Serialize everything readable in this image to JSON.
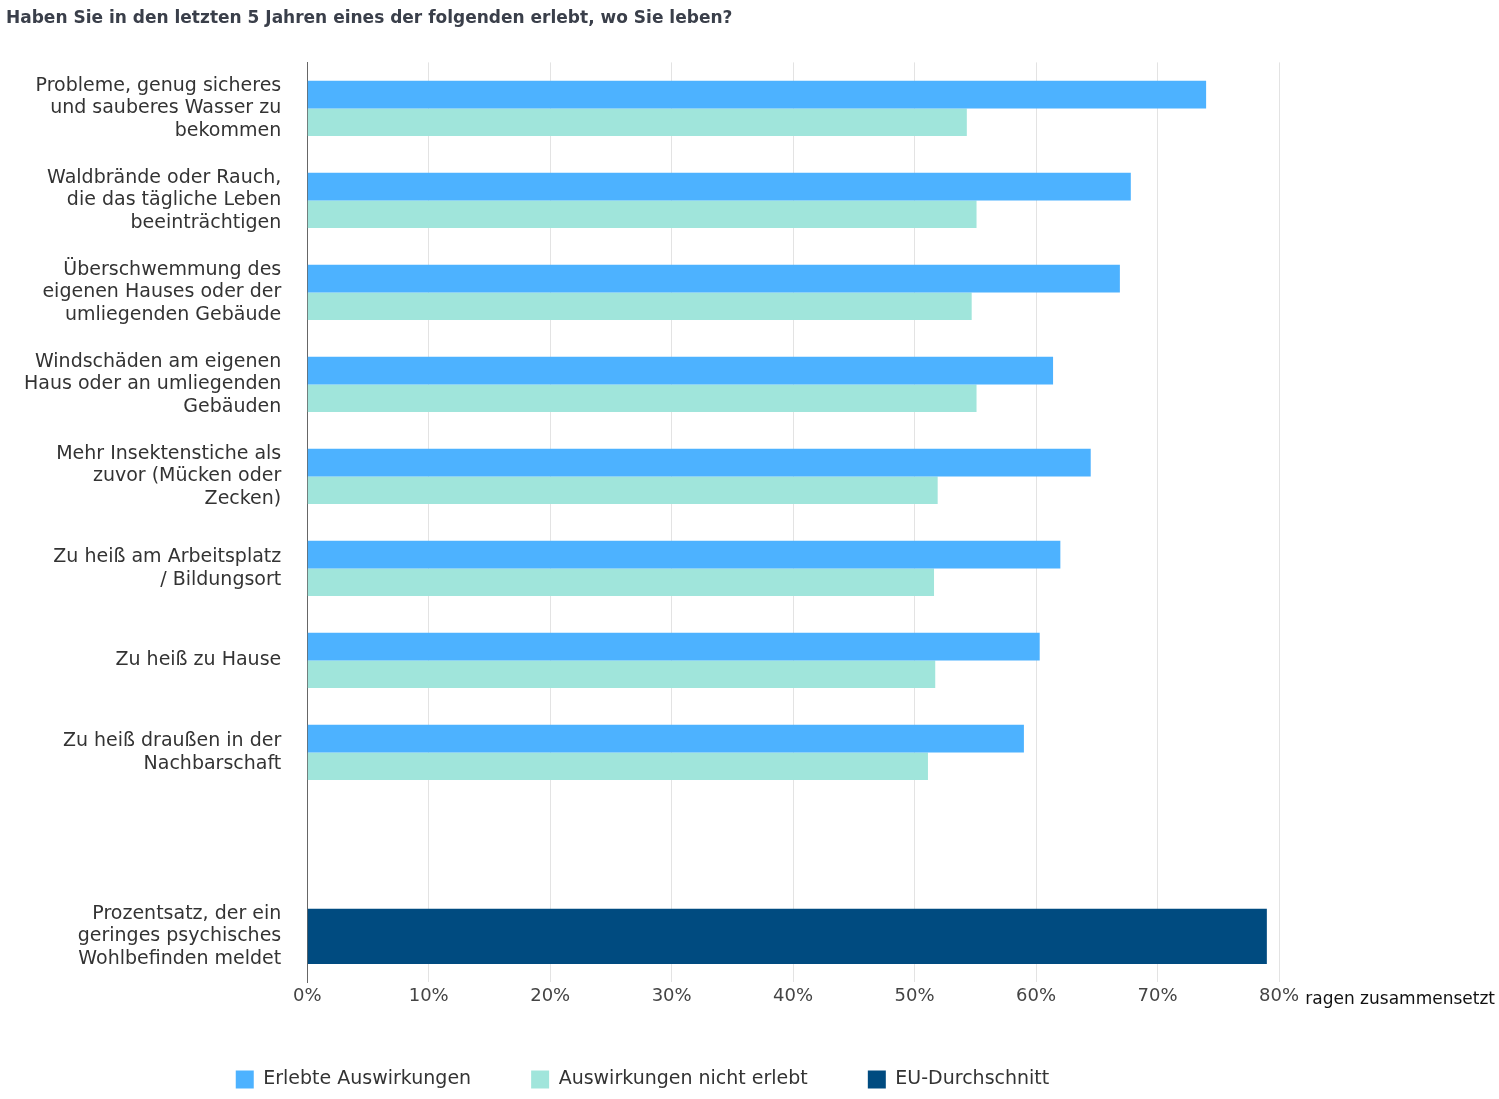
{
  "chart_data": {
    "type": "bar",
    "orientation": "horizontal",
    "title": "Haben Sie in den letzten 5 Jahren eines der folgenden erlebt, wo Sie leben?",
    "categories": [
      "Probleme, genug sicheres und sauberes Wasser zu bekommen",
      "Waldbrände oder Rauch, die das tägliche Leben beeinträchtigen",
      "Überschwemmung des eigenen Hauses oder der umliegenden Gebäude",
      "Windschäden am eigenen Haus oder an umliegenden Gebäuden",
      "Mehr Insektenstiche als zuvor (Mücken oder Zecken)",
      "Zu heiß am Arbeitsplatz / Bildungsort",
      "Zu heiß zu Hause",
      "Zu heiß draußen in der Nachbarschaft",
      null,
      "Prozentsatz, der ein geringes psychisches Wohlbefinden meldet"
    ],
    "series": [
      {
        "name": "Erlebte Auswirkungen",
        "color": "#4db2ff",
        "values": [
          74.0,
          67.8,
          66.9,
          61.4,
          64.5,
          62.0,
          60.3,
          59.0,
          null,
          null
        ]
      },
      {
        "name": "Auswirkungen nicht erlebt",
        "color": "#a0e5db",
        "values": [
          54.3,
          55.1,
          54.7,
          55.1,
          51.9,
          51.6,
          51.7,
          51.1,
          null,
          null
        ]
      },
      {
        "name": "EU-Durchschnitt",
        "color": "#004b80",
        "values": [
          null,
          null,
          null,
          null,
          null,
          null,
          null,
          null,
          null,
          79.0
        ]
      }
    ],
    "xlim": [
      0,
      80
    ],
    "xticks": [
      {
        "value": 0,
        "label": "0%"
      },
      {
        "value": 10,
        "label": "10%"
      },
      {
        "value": 20,
        "label": "20%"
      },
      {
        "value": 30,
        "label": "30%"
      },
      {
        "value": 40,
        "label": "40%"
      },
      {
        "value": 50,
        "label": "50%"
      },
      {
        "value": 60,
        "label": "60%"
      },
      {
        "value": 70,
        "label": "70%"
      },
      {
        "value": 80,
        "label": "80%"
      }
    ],
    "grid": "x",
    "legend": "bottom",
    "annotations": [
      "ragen zusammensetzt"
    ]
  }
}
